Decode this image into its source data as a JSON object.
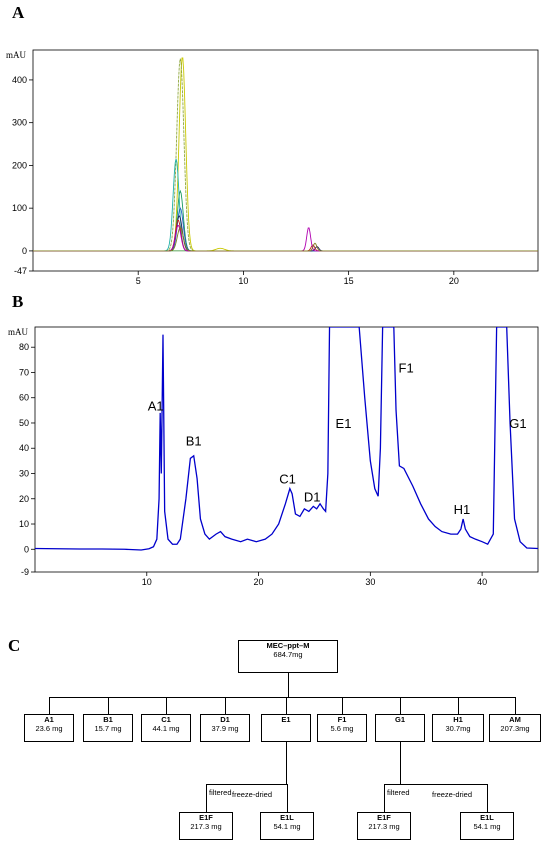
{
  "panels": {
    "a": "A",
    "b": "B",
    "c": "C"
  },
  "chart_data": [
    {
      "type": "line",
      "ylabel": "mAU",
      "xlim": [
        0,
        24
      ],
      "ylim": [
        -47,
        470
      ],
      "xticks": [
        5,
        10,
        15,
        20
      ],
      "yticks": [
        -47,
        0,
        100,
        200,
        300,
        400
      ],
      "grid": false,
      "peaks_note_free": true,
      "series": [
        {
          "color": "#c8c800",
          "peaks": [
            {
              "x": 7.1,
              "y": 455,
              "w": 0.22
            },
            {
              "x": 8.9,
              "y": 6,
              "w": 0.3
            }
          ]
        },
        {
          "color": "#90a840",
          "peaks": [
            {
              "x": 7.0,
              "y": 450,
              "w": 0.24
            }
          ]
        },
        {
          "color": "#20b0a8",
          "peaks": [
            {
              "x": 6.8,
              "y": 215,
              "w": 0.2
            }
          ]
        },
        {
          "color": "#1a9a60",
          "peaks": [
            {
              "x": 7.0,
              "y": 140,
              "w": 0.2
            }
          ]
        },
        {
          "color": "#2060c0",
          "peaks": [
            {
              "x": 7.0,
              "y": 100,
              "w": 0.2
            }
          ]
        },
        {
          "color": "#202060",
          "peaks": [
            {
              "x": 6.95,
              "y": 82,
              "w": 0.2
            },
            {
              "x": 13.5,
              "y": 10,
              "w": 0.12
            }
          ]
        },
        {
          "color": "#c02020",
          "peaks": [
            {
              "x": 6.9,
              "y": 72,
              "w": 0.18
            },
            {
              "x": 13.3,
              "y": 14,
              "w": 0.12
            }
          ]
        },
        {
          "color": "#b000b0",
          "peaks": [
            {
              "x": 6.9,
              "y": 60,
              "w": 0.18
            },
            {
              "x": 13.1,
              "y": 55,
              "w": 0.13
            }
          ]
        },
        {
          "color": "#808020",
          "peaks": [
            {
              "x": 7.0,
              "y": 55,
              "w": 0.2
            },
            {
              "x": 13.4,
              "y": 18,
              "w": 0.12
            }
          ]
        }
      ]
    },
    {
      "type": "line",
      "ylabel": "mAU",
      "xlim": [
        0,
        45
      ],
      "ylim": [
        -9,
        88
      ],
      "xticks": [
        10,
        20,
        30,
        40
      ],
      "yticks": [
        -9,
        0,
        10,
        20,
        30,
        40,
        50,
        60,
        70,
        80
      ],
      "grid": false,
      "color": "#0000cc",
      "points": [
        [
          0,
          0.3
        ],
        [
          2,
          0.2
        ],
        [
          4,
          0.1
        ],
        [
          6,
          0.1
        ],
        [
          8,
          0
        ],
        [
          9.5,
          -0.3
        ],
        [
          10.2,
          0.2
        ],
        [
          10.6,
          1
        ],
        [
          10.9,
          4
        ],
        [
          11.1,
          20
        ],
        [
          11.2,
          54
        ],
        [
          11.3,
          30
        ],
        [
          11.45,
          85
        ],
        [
          11.6,
          15
        ],
        [
          11.9,
          4
        ],
        [
          12.3,
          2
        ],
        [
          12.7,
          2
        ],
        [
          13,
          4
        ],
        [
          13.5,
          20
        ],
        [
          13.9,
          36
        ],
        [
          14.2,
          37
        ],
        [
          14.5,
          28
        ],
        [
          14.8,
          12
        ],
        [
          15.2,
          6
        ],
        [
          15.6,
          4
        ],
        [
          16.2,
          6
        ],
        [
          16.6,
          7
        ],
        [
          17,
          5
        ],
        [
          17.6,
          4
        ],
        [
          18.4,
          3
        ],
        [
          19,
          4
        ],
        [
          19.8,
          3
        ],
        [
          20.6,
          4
        ],
        [
          21.2,
          6
        ],
        [
          21.8,
          10
        ],
        [
          22.4,
          18
        ],
        [
          22.8,
          24
        ],
        [
          23,
          22
        ],
        [
          23.3,
          14
        ],
        [
          23.7,
          13
        ],
        [
          24.1,
          16
        ],
        [
          24.5,
          15
        ],
        [
          24.9,
          17
        ],
        [
          25.2,
          16
        ],
        [
          25.5,
          18
        ],
        [
          25.8,
          16
        ],
        [
          26,
          15
        ],
        [
          26.2,
          30
        ],
        [
          26.35,
          88
        ],
        [
          29,
          88
        ],
        [
          29.5,
          60
        ],
        [
          30,
          35
        ],
        [
          30.4,
          24
        ],
        [
          30.7,
          21
        ],
        [
          30.9,
          40
        ],
        [
          31.1,
          88
        ],
        [
          32.1,
          88
        ],
        [
          32.3,
          55
        ],
        [
          32.6,
          33
        ],
        [
          33,
          32
        ],
        [
          33.8,
          25
        ],
        [
          34.5,
          18
        ],
        [
          35.2,
          12
        ],
        [
          35.8,
          9
        ],
        [
          36.4,
          7
        ],
        [
          37.2,
          6
        ],
        [
          37.8,
          6
        ],
        [
          38.1,
          8
        ],
        [
          38.3,
          12
        ],
        [
          38.5,
          8
        ],
        [
          38.9,
          5
        ],
        [
          39.4,
          4
        ],
        [
          40,
          3
        ],
        [
          40.5,
          2
        ],
        [
          41,
          6
        ],
        [
          41.3,
          88
        ],
        [
          42.2,
          88
        ],
        [
          42.5,
          50
        ],
        [
          42.9,
          12
        ],
        [
          43.4,
          3
        ],
        [
          44,
          0.5
        ],
        [
          45,
          0.3
        ]
      ],
      "peak_labels": [
        {
          "label": "A1",
          "x": 10.8,
          "y": 55
        },
        {
          "label": "B1",
          "x": 14.2,
          "y": 41
        },
        {
          "label": "C1",
          "x": 22.6,
          "y": 26
        },
        {
          "label": "D1",
          "x": 24.8,
          "y": 19
        },
        {
          "label": "E1",
          "x": 27.6,
          "y": 48
        },
        {
          "label": "F1",
          "x": 33.2,
          "y": 70
        },
        {
          "label": "H1",
          "x": 38.2,
          "y": 14
        },
        {
          "label": "G1",
          "x": 43.2,
          "y": 48
        }
      ]
    }
  ],
  "tree": {
    "root": {
      "name": "MEC–ppt–M",
      "value": "684.7mg"
    },
    "children": [
      {
        "name": "A1",
        "value": "23.6 mg"
      },
      {
        "name": "B1",
        "value": "15.7 mg"
      },
      {
        "name": "C1",
        "value": "44.1 mg"
      },
      {
        "name": "D1",
        "value": "37.9 mg"
      },
      {
        "name": "E1",
        "value": ""
      },
      {
        "name": "F1",
        "value": "5.6 mg"
      },
      {
        "name": "G1",
        "value": ""
      },
      {
        "name": "H1",
        "value": "30.7mg"
      },
      {
        "name": "AM",
        "value": "207.3mg"
      }
    ],
    "e1_children": [
      {
        "edge": "filtered",
        "name": "E1F",
        "value": "217.3 mg"
      },
      {
        "edge": "freeze-dried",
        "name": "E1L",
        "value": "54.1 mg"
      }
    ],
    "g1_children": [
      {
        "edge": "filtered",
        "name": "E1F",
        "value": "217.3 mg"
      },
      {
        "edge": "freeze-dried",
        "name": "E1L",
        "value": "54.1 mg"
      }
    ]
  }
}
